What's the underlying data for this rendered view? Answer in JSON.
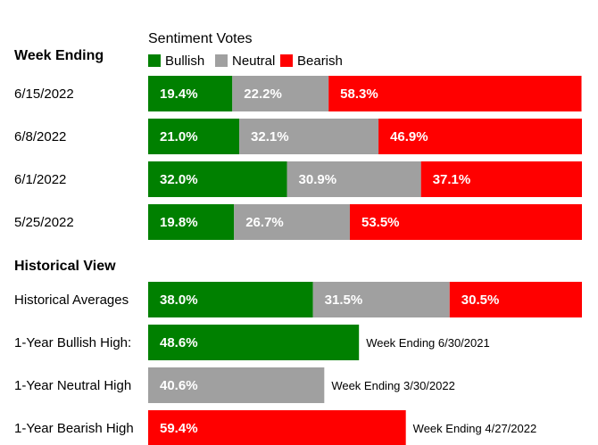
{
  "chart_data": {
    "type": "bar",
    "stacked": true,
    "orientation": "horizontal",
    "legend_title": "Sentiment Votes",
    "legend_placement": "top",
    "grid": false,
    "xlim": [
      0,
      100
    ],
    "series_meta": [
      {
        "name": "Bullish",
        "color": "#008000"
      },
      {
        "name": "Neutral",
        "color": "#a0a0a0"
      },
      {
        "name": "Bearish",
        "color": "#ff0000"
      }
    ],
    "weekly": {
      "section_label": "Week Ending",
      "categories": [
        "6/15/2022",
        "6/8/2022",
        "6/1/2022",
        "5/25/2022"
      ],
      "values": [
        [
          19.4,
          22.2,
          58.3
        ],
        [
          21.0,
          32.1,
          46.9
        ],
        [
          32.0,
          30.9,
          37.1
        ],
        [
          19.8,
          26.7,
          53.5
        ]
      ],
      "value_labels": [
        [
          "19.4%",
          "22.2%",
          "58.3%"
        ],
        [
          "21.0%",
          "32.1%",
          "46.9%"
        ],
        [
          "32.0%",
          "30.9%",
          "37.1%"
        ],
        [
          "19.8%",
          "26.7%",
          "53.5%"
        ]
      ]
    },
    "historical": {
      "section_label": "Historical View",
      "rows": [
        {
          "label": "Historical Averages",
          "values": [
            38.0,
            31.5,
            30.5
          ],
          "value_labels": [
            "38.0%",
            "31.5%",
            "30.5%"
          ],
          "note": ""
        },
        {
          "label": "1-Year Bullish High:",
          "series": 0,
          "value": 48.6,
          "value_label": "48.6%",
          "note": "Week Ending 6/30/2021"
        },
        {
          "label": "1-Year Neutral High",
          "series": 1,
          "value": 40.6,
          "value_label": "40.6%",
          "note": "Week Ending 3/30/2022"
        },
        {
          "label": "1-Year Bearish High",
          "series": 2,
          "value": 59.4,
          "value_label": "59.4%",
          "note": "Week Ending 4/27/2022"
        }
      ]
    }
  }
}
